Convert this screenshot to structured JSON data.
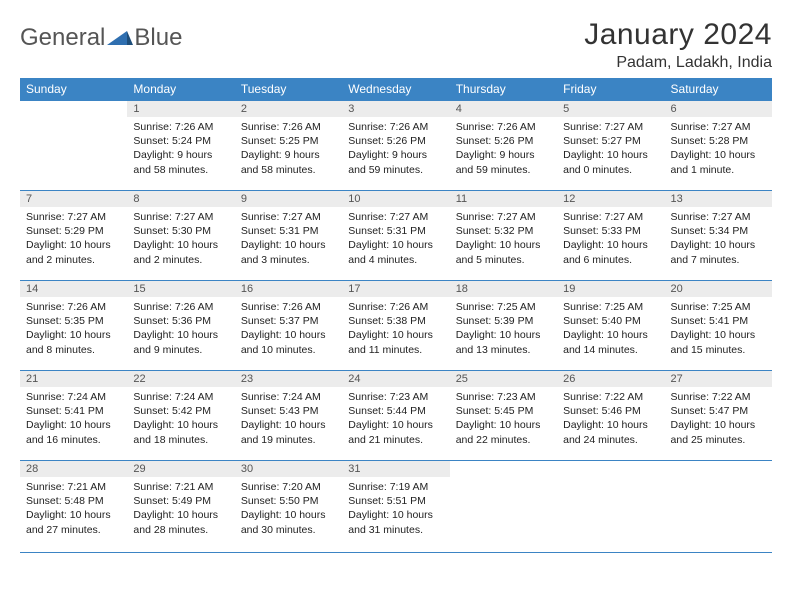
{
  "brand": {
    "part1": "General",
    "part2": "Blue"
  },
  "title": "January 2024",
  "location": "Padam, Ladakh, India",
  "colors": {
    "header_bg": "#3b84c4",
    "header_text": "#ffffff",
    "daynum_bg": "#ececec",
    "rule": "#3b84c4",
    "logo_shape": "#2f6fb0"
  },
  "weekdays": [
    "Sunday",
    "Monday",
    "Tuesday",
    "Wednesday",
    "Thursday",
    "Friday",
    "Saturday"
  ],
  "weeks": [
    [
      {
        "n": "",
        "sunrise": "",
        "sunset": "",
        "daylight": ""
      },
      {
        "n": "1",
        "sunrise": "Sunrise: 7:26 AM",
        "sunset": "Sunset: 5:24 PM",
        "daylight": "Daylight: 9 hours and 58 minutes."
      },
      {
        "n": "2",
        "sunrise": "Sunrise: 7:26 AM",
        "sunset": "Sunset: 5:25 PM",
        "daylight": "Daylight: 9 hours and 58 minutes."
      },
      {
        "n": "3",
        "sunrise": "Sunrise: 7:26 AM",
        "sunset": "Sunset: 5:26 PM",
        "daylight": "Daylight: 9 hours and 59 minutes."
      },
      {
        "n": "4",
        "sunrise": "Sunrise: 7:26 AM",
        "sunset": "Sunset: 5:26 PM",
        "daylight": "Daylight: 9 hours and 59 minutes."
      },
      {
        "n": "5",
        "sunrise": "Sunrise: 7:27 AM",
        "sunset": "Sunset: 5:27 PM",
        "daylight": "Daylight: 10 hours and 0 minutes."
      },
      {
        "n": "6",
        "sunrise": "Sunrise: 7:27 AM",
        "sunset": "Sunset: 5:28 PM",
        "daylight": "Daylight: 10 hours and 1 minute."
      }
    ],
    [
      {
        "n": "7",
        "sunrise": "Sunrise: 7:27 AM",
        "sunset": "Sunset: 5:29 PM",
        "daylight": "Daylight: 10 hours and 2 minutes."
      },
      {
        "n": "8",
        "sunrise": "Sunrise: 7:27 AM",
        "sunset": "Sunset: 5:30 PM",
        "daylight": "Daylight: 10 hours and 2 minutes."
      },
      {
        "n": "9",
        "sunrise": "Sunrise: 7:27 AM",
        "sunset": "Sunset: 5:31 PM",
        "daylight": "Daylight: 10 hours and 3 minutes."
      },
      {
        "n": "10",
        "sunrise": "Sunrise: 7:27 AM",
        "sunset": "Sunset: 5:31 PM",
        "daylight": "Daylight: 10 hours and 4 minutes."
      },
      {
        "n": "11",
        "sunrise": "Sunrise: 7:27 AM",
        "sunset": "Sunset: 5:32 PM",
        "daylight": "Daylight: 10 hours and 5 minutes."
      },
      {
        "n": "12",
        "sunrise": "Sunrise: 7:27 AM",
        "sunset": "Sunset: 5:33 PM",
        "daylight": "Daylight: 10 hours and 6 minutes."
      },
      {
        "n": "13",
        "sunrise": "Sunrise: 7:27 AM",
        "sunset": "Sunset: 5:34 PM",
        "daylight": "Daylight: 10 hours and 7 minutes."
      }
    ],
    [
      {
        "n": "14",
        "sunrise": "Sunrise: 7:26 AM",
        "sunset": "Sunset: 5:35 PM",
        "daylight": "Daylight: 10 hours and 8 minutes."
      },
      {
        "n": "15",
        "sunrise": "Sunrise: 7:26 AM",
        "sunset": "Sunset: 5:36 PM",
        "daylight": "Daylight: 10 hours and 9 minutes."
      },
      {
        "n": "16",
        "sunrise": "Sunrise: 7:26 AM",
        "sunset": "Sunset: 5:37 PM",
        "daylight": "Daylight: 10 hours and 10 minutes."
      },
      {
        "n": "17",
        "sunrise": "Sunrise: 7:26 AM",
        "sunset": "Sunset: 5:38 PM",
        "daylight": "Daylight: 10 hours and 11 minutes."
      },
      {
        "n": "18",
        "sunrise": "Sunrise: 7:25 AM",
        "sunset": "Sunset: 5:39 PM",
        "daylight": "Daylight: 10 hours and 13 minutes."
      },
      {
        "n": "19",
        "sunrise": "Sunrise: 7:25 AM",
        "sunset": "Sunset: 5:40 PM",
        "daylight": "Daylight: 10 hours and 14 minutes."
      },
      {
        "n": "20",
        "sunrise": "Sunrise: 7:25 AM",
        "sunset": "Sunset: 5:41 PM",
        "daylight": "Daylight: 10 hours and 15 minutes."
      }
    ],
    [
      {
        "n": "21",
        "sunrise": "Sunrise: 7:24 AM",
        "sunset": "Sunset: 5:41 PM",
        "daylight": "Daylight: 10 hours and 16 minutes."
      },
      {
        "n": "22",
        "sunrise": "Sunrise: 7:24 AM",
        "sunset": "Sunset: 5:42 PM",
        "daylight": "Daylight: 10 hours and 18 minutes."
      },
      {
        "n": "23",
        "sunrise": "Sunrise: 7:24 AM",
        "sunset": "Sunset: 5:43 PM",
        "daylight": "Daylight: 10 hours and 19 minutes."
      },
      {
        "n": "24",
        "sunrise": "Sunrise: 7:23 AM",
        "sunset": "Sunset: 5:44 PM",
        "daylight": "Daylight: 10 hours and 21 minutes."
      },
      {
        "n": "25",
        "sunrise": "Sunrise: 7:23 AM",
        "sunset": "Sunset: 5:45 PM",
        "daylight": "Daylight: 10 hours and 22 minutes."
      },
      {
        "n": "26",
        "sunrise": "Sunrise: 7:22 AM",
        "sunset": "Sunset: 5:46 PM",
        "daylight": "Daylight: 10 hours and 24 minutes."
      },
      {
        "n": "27",
        "sunrise": "Sunrise: 7:22 AM",
        "sunset": "Sunset: 5:47 PM",
        "daylight": "Daylight: 10 hours and 25 minutes."
      }
    ],
    [
      {
        "n": "28",
        "sunrise": "Sunrise: 7:21 AM",
        "sunset": "Sunset: 5:48 PM",
        "daylight": "Daylight: 10 hours and 27 minutes."
      },
      {
        "n": "29",
        "sunrise": "Sunrise: 7:21 AM",
        "sunset": "Sunset: 5:49 PM",
        "daylight": "Daylight: 10 hours and 28 minutes."
      },
      {
        "n": "30",
        "sunrise": "Sunrise: 7:20 AM",
        "sunset": "Sunset: 5:50 PM",
        "daylight": "Daylight: 10 hours and 30 minutes."
      },
      {
        "n": "31",
        "sunrise": "Sunrise: 7:19 AM",
        "sunset": "Sunset: 5:51 PM",
        "daylight": "Daylight: 10 hours and 31 minutes."
      },
      {
        "n": "",
        "sunrise": "",
        "sunset": "",
        "daylight": ""
      },
      {
        "n": "",
        "sunrise": "",
        "sunset": "",
        "daylight": ""
      },
      {
        "n": "",
        "sunrise": "",
        "sunset": "",
        "daylight": ""
      }
    ]
  ]
}
